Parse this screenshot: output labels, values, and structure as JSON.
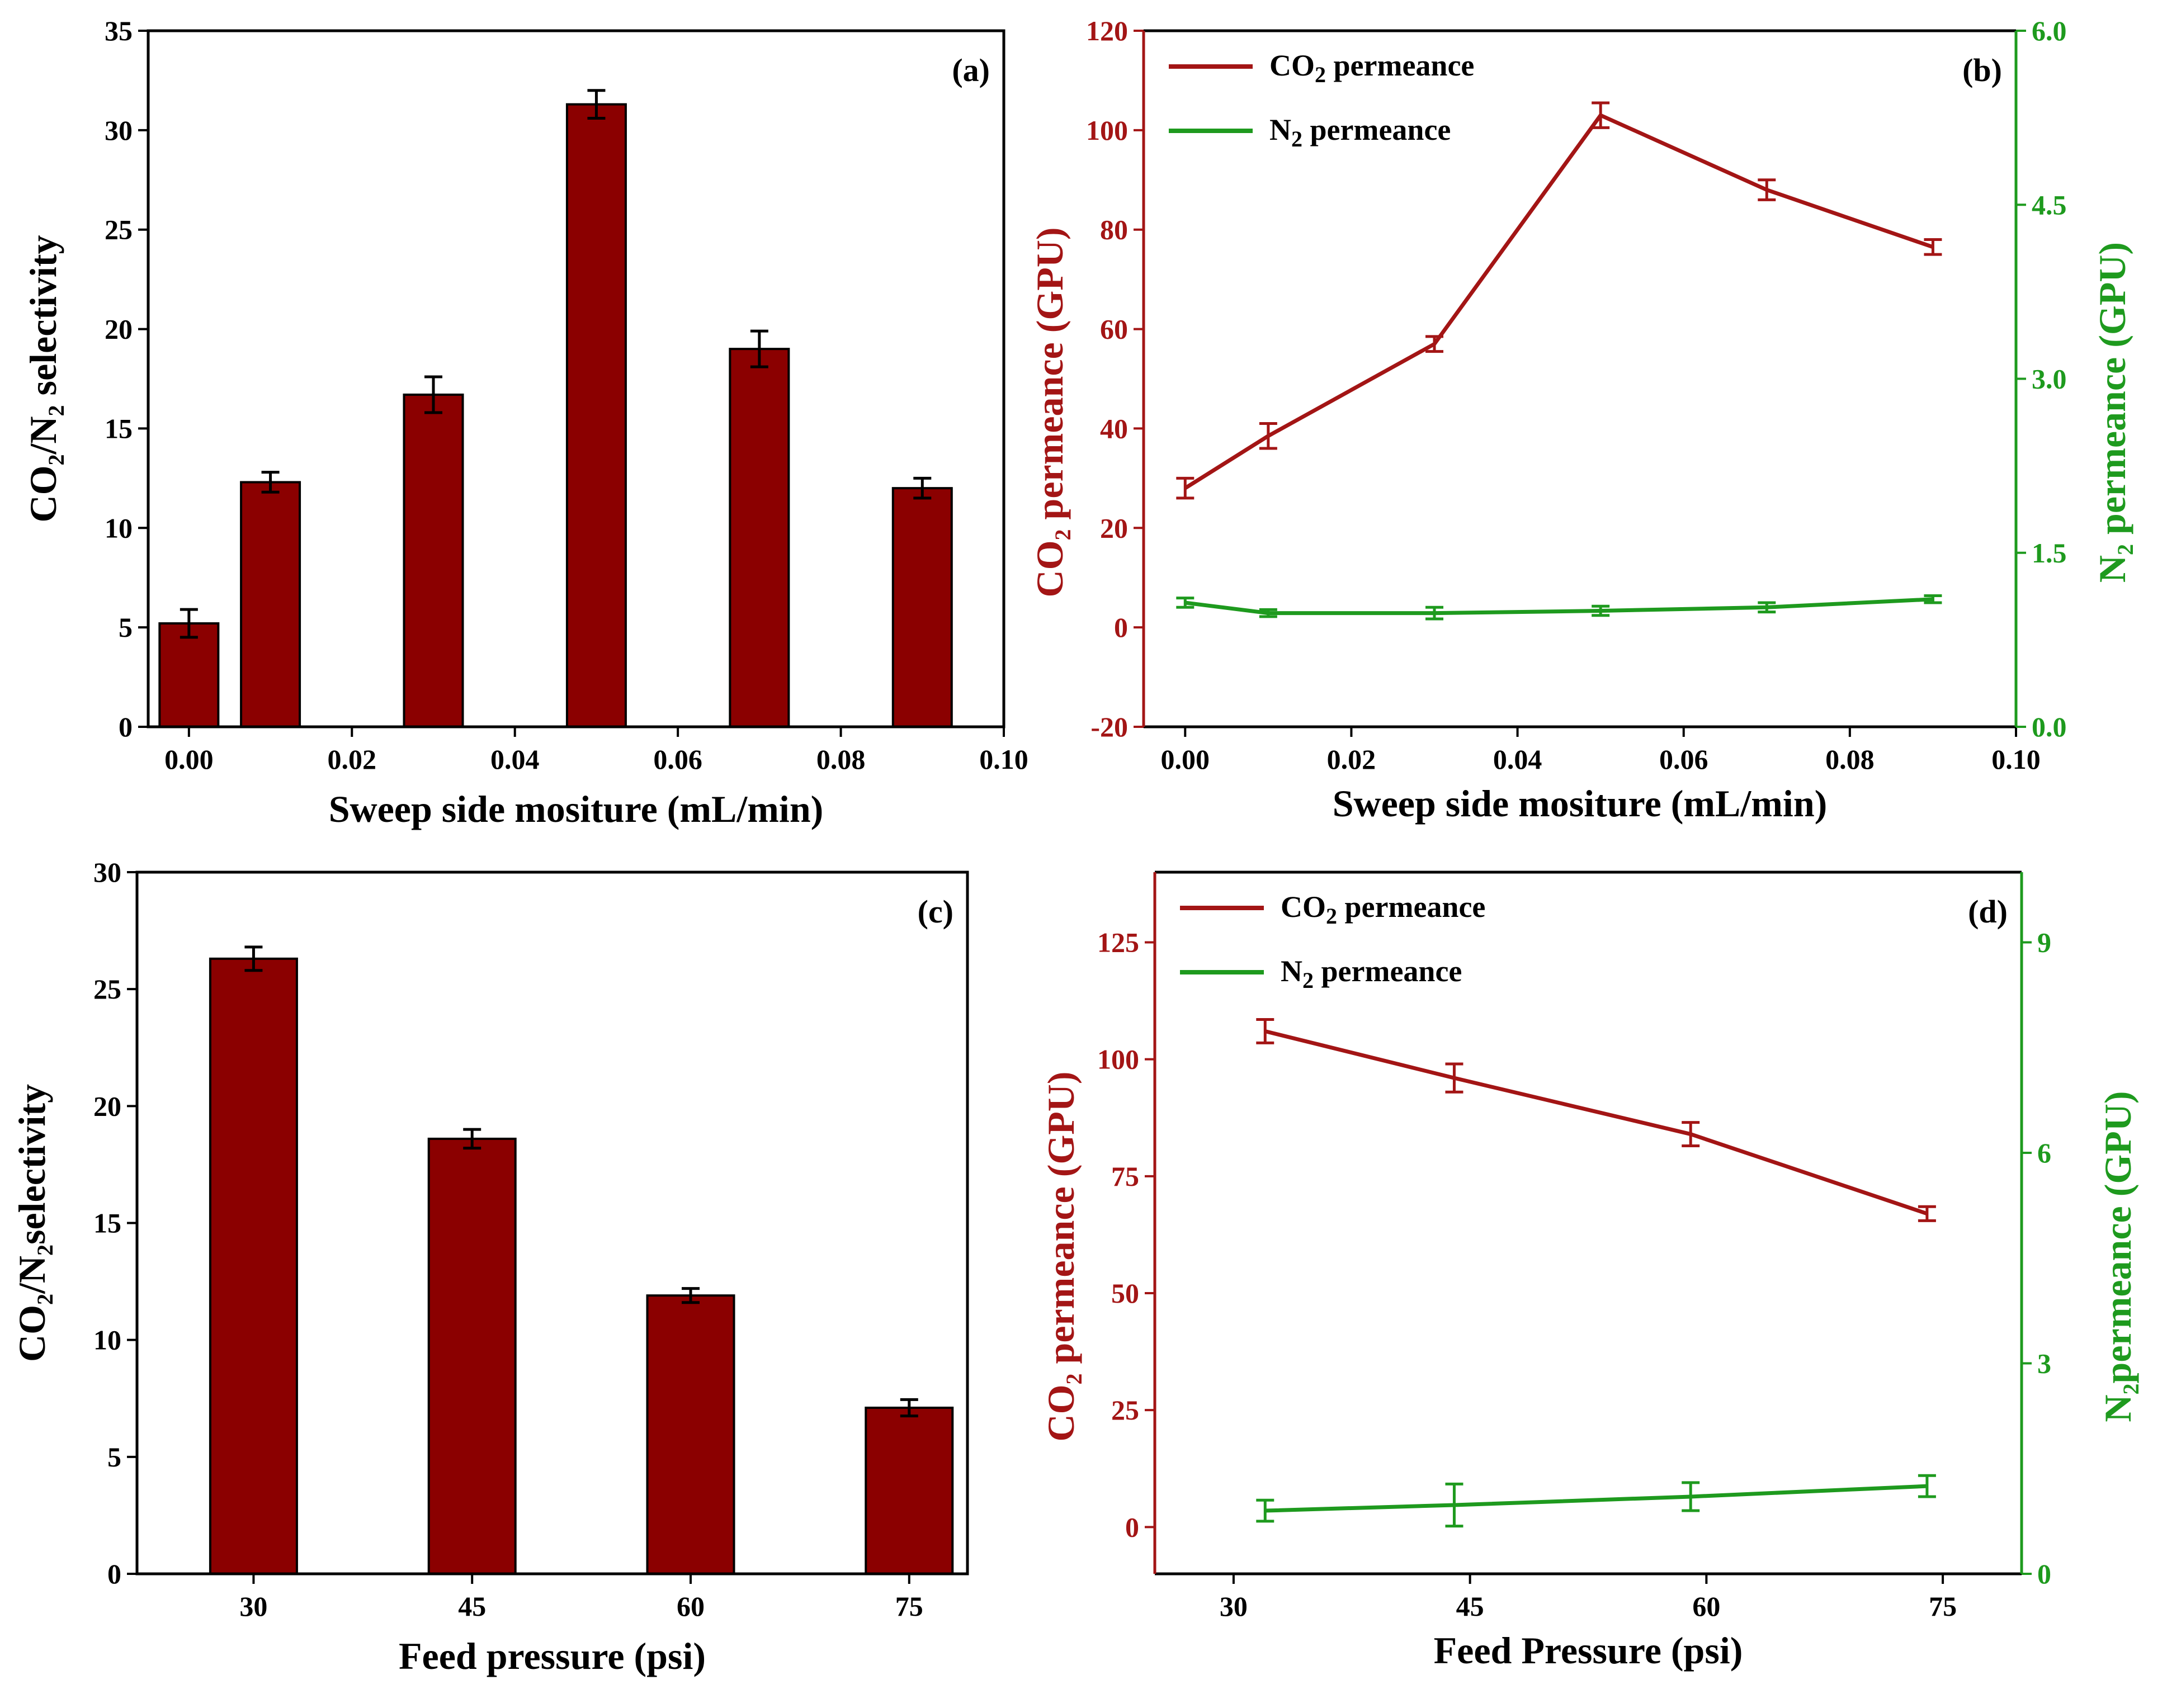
{
  "chart_data": [
    {
      "panel": "a",
      "type": "bar",
      "tag": "(a)",
      "x": [
        0.0,
        0.01,
        0.03,
        0.05,
        0.07,
        0.09
      ],
      "values": [
        5.2,
        12.3,
        16.7,
        31.3,
        19.0,
        12.0
      ],
      "errors": [
        0.7,
        0.5,
        0.9,
        0.7,
        0.9,
        0.5
      ],
      "xlim": [
        -0.005,
        0.1
      ],
      "ylim": [
        0,
        35
      ],
      "xticks": [
        "0.00",
        "0.02",
        "0.04",
        "0.06",
        "0.08",
        "0.10"
      ],
      "yticks": [
        "0",
        "5",
        "10",
        "15",
        "20",
        "25",
        "30",
        "35"
      ],
      "xlabel": "Sweep side mositure (mL/min)",
      "ylabel": "CO2/N2 selectivity",
      "ylabel_parts": {
        "a": "CO",
        "s1": "2",
        "b": "/N",
        "s2": "2",
        "c": " selectivity"
      },
      "bar_color": "#8b0000"
    },
    {
      "panel": "b",
      "type": "line",
      "tag": "(b)",
      "x": [
        0.0,
        0.01,
        0.03,
        0.05,
        0.07,
        0.09
      ],
      "series": [
        {
          "name": "CO2 permeance",
          "name_parts": {
            "a": "CO",
            "s": "2",
            "b": " permeance"
          },
          "axis": "left",
          "color": "#a31515",
          "values": [
            28,
            38.5,
            57,
            103,
            88,
            76.5
          ],
          "errors": [
            2,
            2.5,
            1.5,
            2.5,
            2,
            1.5
          ]
        },
        {
          "name": "N2 permeance",
          "name_parts": {
            "a": "N",
            "s": "2",
            "b": " permeance"
          },
          "axis": "right",
          "color": "#1e9a1e",
          "values": [
            1.07,
            0.98,
            0.98,
            1.0,
            1.03,
            1.1
          ],
          "errors": [
            0.04,
            0.03,
            0.05,
            0.04,
            0.04,
            0.03
          ]
        }
      ],
      "xlim": [
        -0.005,
        0.1
      ],
      "ylim": [
        -20,
        120
      ],
      "y2lim": [
        0,
        6
      ],
      "xticks": [
        "0.00",
        "0.02",
        "0.04",
        "0.06",
        "0.08",
        "0.10"
      ],
      "yticks": [
        "-20",
        "0",
        "20",
        "40",
        "60",
        "80",
        "100",
        "120"
      ],
      "y2ticks": [
        "0.0",
        "1.5",
        "3.0",
        "4.5",
        "6.0"
      ],
      "xlabel": "Sweep side mositure (mL/min)",
      "ylabel": "CO2 permeance (GPU)",
      "ylabel_parts": {
        "a": "CO",
        "s": "2",
        "b": " permeance (GPU)"
      },
      "y2label": "N2 permeance (GPU)",
      "y2label_parts": {
        "a": "N",
        "s": "2",
        "b": " permeance (GPU)"
      },
      "legend_position": "top-left"
    },
    {
      "panel": "c",
      "type": "bar",
      "tag": "(c)",
      "x": [
        30,
        45,
        60,
        75
      ],
      "values": [
        26.3,
        18.6,
        11.9,
        7.1
      ],
      "errors": [
        0.5,
        0.4,
        0.3,
        0.35
      ],
      "xlim": [
        22,
        79
      ],
      "ylim": [
        0,
        30
      ],
      "xticks": [
        "30",
        "45",
        "60",
        "75"
      ],
      "yticks": [
        "0",
        "5",
        "10",
        "15",
        "20",
        "25",
        "30"
      ],
      "xlabel": "Feed pressure (psi)",
      "ylabel": "CO2/N2selectivity",
      "ylabel_parts": {
        "a": "CO",
        "s1": "2",
        "b": "/N",
        "s2": "2",
        "c": "selectivity"
      },
      "bar_color": "#8b0000"
    },
    {
      "panel": "d",
      "type": "line",
      "tag": "(d)",
      "x": [
        32,
        44,
        59,
        74
      ],
      "series": [
        {
          "name": "CO2 permeance",
          "name_parts": {
            "a": "CO",
            "s": "2",
            "b": " permeance"
          },
          "axis": "left",
          "color": "#a31515",
          "values": [
            106,
            96,
            84,
            67
          ],
          "errors": [
            2.5,
            3,
            2.5,
            1.5
          ]
        },
        {
          "name": "N2 permeance",
          "name_parts": {
            "a": "N",
            "s": "2",
            "b": " permeance"
          },
          "axis": "right",
          "color": "#1e9a1e",
          "values": [
            0.9,
            0.98,
            1.1,
            1.25
          ],
          "errors": [
            0.15,
            0.3,
            0.2,
            0.15
          ]
        }
      ],
      "xlim": [
        25,
        80
      ],
      "ylim": [
        -10,
        140
      ],
      "y2lim": [
        0,
        10
      ],
      "xticks": [
        "30",
        "45",
        "60",
        "75"
      ],
      "yticks": [
        "0",
        "25",
        "50",
        "75",
        "100",
        "125"
      ],
      "y2ticks": [
        "0",
        "3",
        "6",
        "9"
      ],
      "xlabel": "Feed Pressure (psi)",
      "ylabel": "CO2 permeance (GPU)",
      "ylabel_parts": {
        "a": "CO",
        "s": "2",
        "b": " permeance (GPU)"
      },
      "y2label": "N2permeance (GPU)",
      "y2label_parts": {
        "a": "N",
        "s": "2",
        "b": "permeance (GPU)"
      },
      "legend_position": "top-left"
    }
  ]
}
